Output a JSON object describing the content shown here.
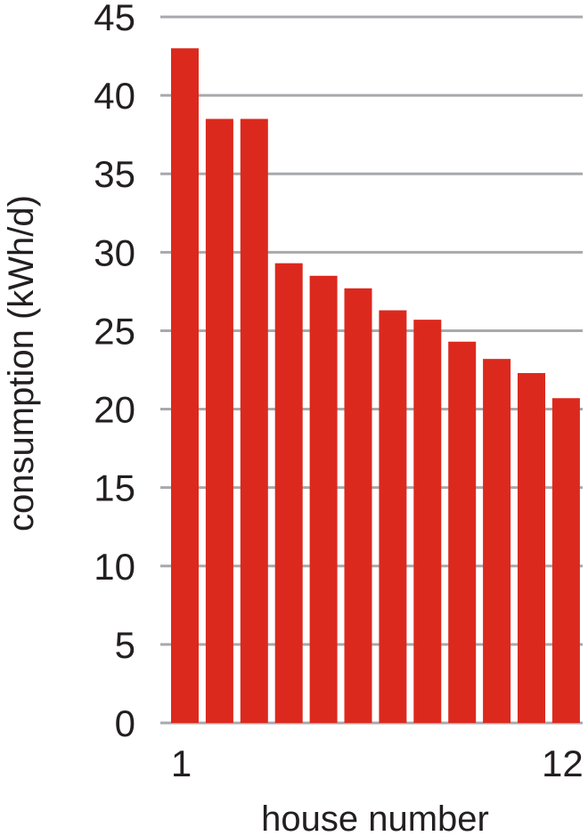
{
  "chart_data": {
    "type": "bar",
    "title": "",
    "xlabel": "house number",
    "ylabel": "consumption (kWh/d)",
    "ylim": [
      0,
      45
    ],
    "yticks": [
      0,
      5,
      10,
      15,
      20,
      25,
      30,
      35,
      40,
      45
    ],
    "grid": true,
    "categories": [
      "1",
      "2",
      "3",
      "4",
      "5",
      "6",
      "7",
      "8",
      "9",
      "10",
      "11",
      "12"
    ],
    "xtick_labels_shown": [
      "1",
      "12"
    ],
    "values": [
      43.0,
      38.5,
      38.5,
      29.3,
      28.5,
      27.7,
      26.3,
      25.7,
      24.3,
      23.2,
      22.3,
      20.7
    ],
    "colors": {
      "bar": "#dc291e",
      "grid": "#a7a9ac",
      "text": "#231f20"
    }
  }
}
